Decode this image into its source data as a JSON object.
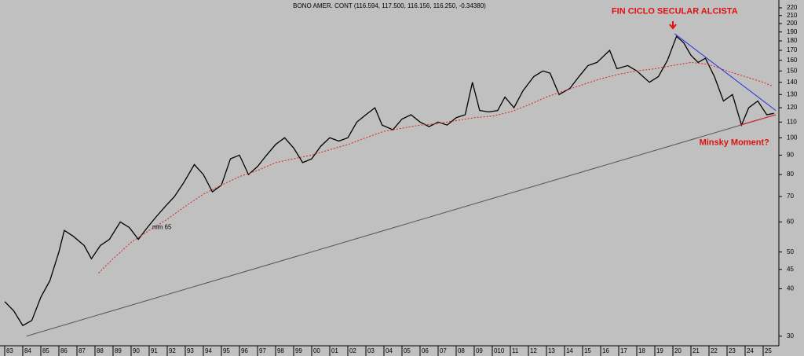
{
  "chart_data": {
    "type": "line",
    "title": "BONO AMER. CONT (116.594, 117.500, 116.156, 116.250, -0.34380)",
    "log_scale": true,
    "grid": false,
    "xlim": [
      1982.74,
      2025.87
    ],
    "ylim": [
      26.6,
      230.7
    ],
    "yticks": [
      30,
      40,
      45,
      50,
      60,
      70,
      80,
      90,
      100,
      110,
      120,
      130,
      140,
      150,
      160,
      170,
      180,
      190,
      200,
      210,
      220
    ],
    "xticks": [
      {
        "value": 1983,
        "label": "83"
      },
      {
        "value": 1984,
        "label": "84"
      },
      {
        "value": 1985,
        "label": "85"
      },
      {
        "value": 1986,
        "label": "86"
      },
      {
        "value": 1987,
        "label": "87"
      },
      {
        "value": 1988,
        "label": "88"
      },
      {
        "value": 1989,
        "label": "89"
      },
      {
        "value": 1990,
        "label": "90"
      },
      {
        "value": 1991,
        "label": "91"
      },
      {
        "value": 1992,
        "label": "92"
      },
      {
        "value": 1993,
        "label": "93"
      },
      {
        "value": 1994,
        "label": "94"
      },
      {
        "value": 1995,
        "label": "95"
      },
      {
        "value": 1996,
        "label": "96"
      },
      {
        "value": 1997,
        "label": "97"
      },
      {
        "value": 1998,
        "label": "98"
      },
      {
        "value": 1999,
        "label": "99"
      },
      {
        "value": 2000,
        "label": "00"
      },
      {
        "value": 2001,
        "label": "01"
      },
      {
        "value": 2002,
        "label": "02"
      },
      {
        "value": 2003,
        "label": "03"
      },
      {
        "value": 2004,
        "label": "04"
      },
      {
        "value": 2005,
        "label": "05"
      },
      {
        "value": 2006,
        "label": "06"
      },
      {
        "value": 2007,
        "label": "07"
      },
      {
        "value": 2008,
        "label": "08"
      },
      {
        "value": 2009,
        "label": "09"
      },
      {
        "value": 2010,
        "label": "010"
      },
      {
        "value": 2011,
        "label": "11"
      },
      {
        "value": 2012,
        "label": "12"
      },
      {
        "value": 2013,
        "label": "13"
      },
      {
        "value": 2014,
        "label": "14"
      },
      {
        "value": 2015,
        "label": "15"
      },
      {
        "value": 2016,
        "label": "16"
      },
      {
        "value": 2017,
        "label": "17"
      },
      {
        "value": 2018,
        "label": "18"
      },
      {
        "value": 2019,
        "label": "19"
      },
      {
        "value": 2020,
        "label": "20"
      },
      {
        "value": 2021,
        "label": "21"
      },
      {
        "value": 2022,
        "label": "22"
      },
      {
        "value": 2023,
        "label": "23"
      },
      {
        "value": 2024,
        "label": "24"
      },
      {
        "value": 2025,
        "label": "25"
      }
    ],
    "series": [
      {
        "color": "#000000",
        "x": [
          1983.0,
          1983.5,
          1984.0,
          1984.5,
          1985.0,
          1985.5,
          1986.0,
          1986.3,
          1986.8,
          1987.4,
          1987.8,
          1988.3,
          1988.8,
          1989.4,
          1989.9,
          1990.4,
          1990.9,
          1991.4,
          1991.9,
          1992.4,
          1992.9,
          1993.5,
          1994.0,
          1994.5,
          1995.0,
          1995.5,
          1996.0,
          1996.5,
          1997.0,
          1997.5,
          1998.0,
          1998.5,
          1999.0,
          1999.5,
          2000.0,
          2000.5,
          2001.0,
          2001.5,
          2002.0,
          2002.5,
          2003.0,
          2003.5,
          2003.9,
          2004.5,
          2005.0,
          2005.5,
          2006.0,
          2006.5,
          2007.0,
          2007.5,
          2008.0,
          2008.5,
          2008.9,
          2009.3,
          2009.8,
          2010.3,
          2010.7,
          2011.2,
          2011.7,
          2012.3,
          2012.8,
          2013.2,
          2013.7,
          2014.3,
          2014.8,
          2015.3,
          2015.8,
          2016.5,
          2016.9,
          2017.5,
          2018.0,
          2018.7,
          2019.2,
          2019.7,
          2020.2,
          2020.6,
          2021.0,
          2021.4,
          2021.8,
          2022.3,
          2022.8,
          2023.3,
          2023.8,
          2024.2,
          2024.7,
          2025.2,
          2025.6
        ],
        "values": [
          37,
          35,
          32,
          33,
          38,
          42,
          50,
          57,
          55,
          52,
          48,
          52,
          54,
          60,
          58,
          54,
          58,
          62,
          66,
          70,
          76,
          85,
          80,
          72,
          75,
          88,
          90,
          80,
          84,
          90,
          96,
          100,
          94,
          86,
          88,
          95,
          100,
          98,
          100,
          110,
          115,
          120,
          108,
          105,
          112,
          115,
          110,
          107,
          110,
          108,
          113,
          115,
          140,
          118,
          117,
          118,
          128,
          120,
          133,
          145,
          150,
          148,
          130,
          135,
          145,
          155,
          158,
          170,
          152,
          155,
          150,
          140,
          145,
          160,
          185,
          178,
          165,
          158,
          162,
          145,
          125,
          130,
          108,
          120,
          125,
          115,
          116
        ]
      },
      {
        "name": "mm 65",
        "color": "#e02020",
        "x": [
          1988.2,
          1989,
          1990,
          1991,
          1992,
          1993,
          1994,
          1995,
          1996,
          1997,
          1998,
          1999,
          2000,
          2001,
          2002,
          2003,
          2004,
          2005,
          2006,
          2007,
          2008,
          2009,
          2010,
          2011,
          2012,
          2013,
          2014,
          2015,
          2016,
          2017,
          2018,
          2019,
          2020,
          2021,
          2022,
          2023,
          2024,
          2025,
          2025.5
        ],
        "values": [
          44,
          48,
          53,
          57,
          61,
          66,
          71,
          75,
          79,
          82,
          86,
          88,
          90,
          93,
          96,
          100,
          104,
          106,
          108,
          109,
          111,
          113,
          114,
          117,
          122,
          128,
          133,
          138,
          143,
          147,
          150,
          152,
          155,
          158,
          156,
          150,
          145,
          140,
          137
        ]
      }
    ],
    "trend_lines": [
      {
        "color": "#555555",
        "x": [
          1984.2,
          2025.7
        ],
        "values": [
          30,
          115
        ]
      },
      {
        "color": "#2030e0",
        "x": [
          2020.1,
          2025.7
        ],
        "values": [
          188,
          118
        ]
      },
      {
        "color": "#e02020",
        "x": [
          2023.7,
          2025.7
        ],
        "values": [
          108,
          115
        ]
      }
    ],
    "annotations": [
      {
        "text": "FIN  CICLO SECULAR ALCISTA",
        "x": 2020.1,
        "y": 215
      },
      {
        "text": "Minsky Moment?",
        "x": 2023.4,
        "y": 97
      }
    ]
  }
}
